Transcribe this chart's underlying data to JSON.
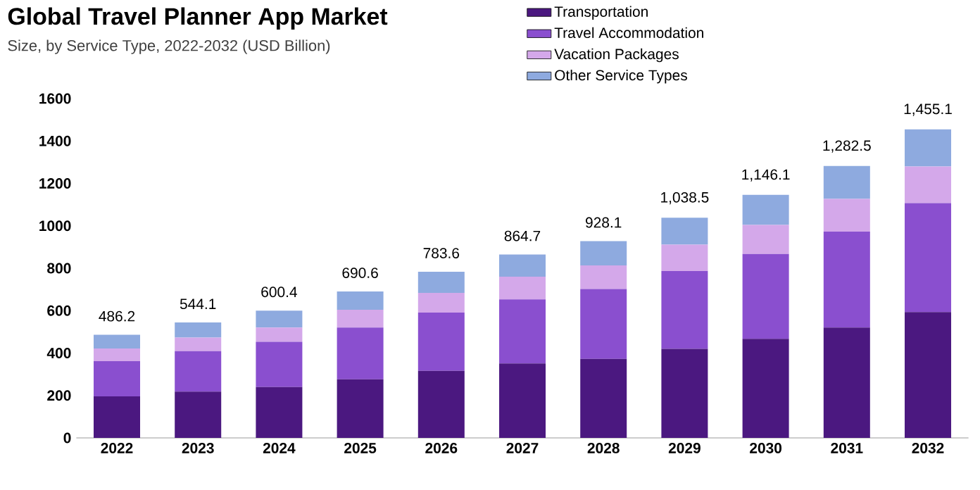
{
  "chart_data": {
    "type": "bar",
    "stacked": true,
    "title": "Global Travel Planner App Market",
    "subtitle": "Size, by Service Type, 2022-2032 (USD Billion)",
    "categories": [
      "2022",
      "2023",
      "2024",
      "2025",
      "2026",
      "2027",
      "2028",
      "2029",
      "2030",
      "2031",
      "2032"
    ],
    "series": [
      {
        "name": "Transportation",
        "color": "#4b1880",
        "values": [
          196,
          218,
          240,
          276,
          316,
          351,
          373,
          420,
          467,
          520,
          593
        ]
      },
      {
        "name": "Travel Accommodation",
        "color": "#8a4fcf",
        "values": [
          166,
          191,
          213,
          244,
          275,
          302,
          329,
          367,
          400,
          453,
          514
        ]
      },
      {
        "name": "Vacation Packages",
        "color": "#d4a8ea",
        "values": [
          60,
          64,
          67,
          84,
          93,
          107,
          111,
          124,
          137,
          154,
          173
        ]
      },
      {
        "name": "Other Service Types",
        "color": "#8eaadf",
        "values": [
          64.2,
          71.1,
          80.4,
          86.6,
          99.6,
          104.7,
          115.1,
          127.5,
          142.1,
          155.5,
          175.1
        ]
      }
    ],
    "totals": [
      "486.2",
      "544.1",
      "600.4",
      "690.6",
      "783.6",
      "864.7",
      "928.1",
      "1,038.5",
      "1,146.1",
      "1,282.5",
      "1,455.1"
    ],
    "ylim": [
      0,
      1600
    ],
    "yticks": [
      0,
      200,
      400,
      600,
      800,
      1000,
      1200,
      1400,
      1600
    ],
    "legend": "top right"
  }
}
